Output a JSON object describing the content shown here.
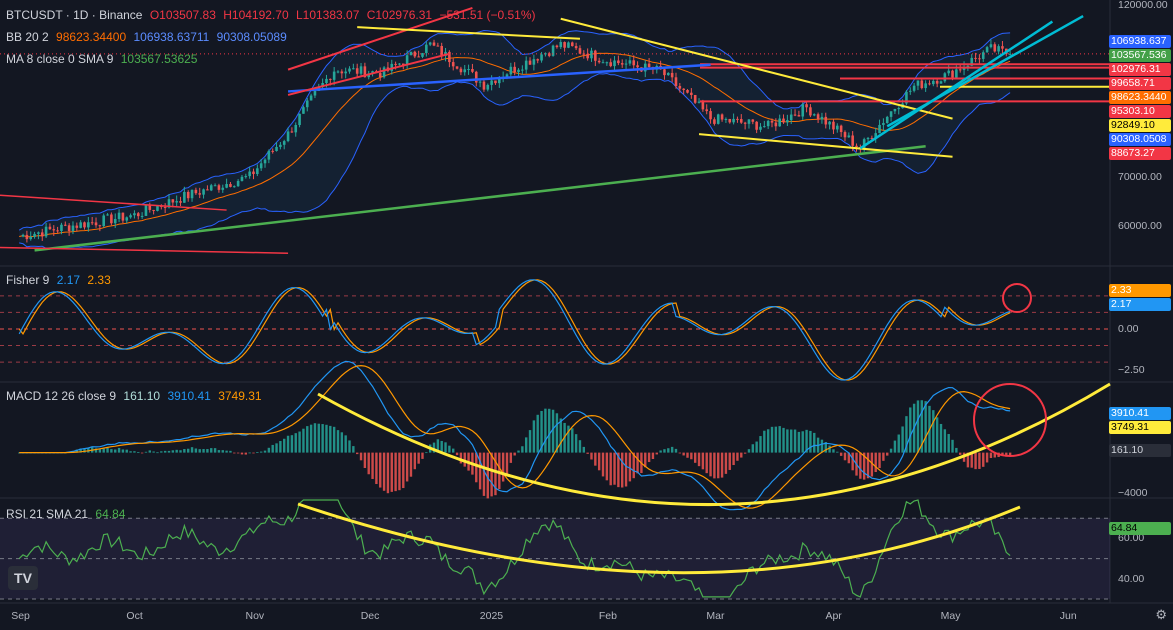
{
  "header": {
    "symbol": "BTCUSDT · 1D · Binance",
    "open": "O103507.83",
    "high": "H104192.70",
    "low": "L101383.07",
    "close": "C102976.31",
    "change": "−531.51 (−0.51%)"
  },
  "indicators": {
    "bb": {
      "name": "BB 20 2",
      "basis": "98623.34400",
      "upper": "106938.63711",
      "lower": "90308.05089",
      "basis_color": "#ff6d00",
      "upper_color": "#2962ff",
      "lower_color": "#2962ff"
    },
    "ma": {
      "name": "MA 8 close 0 SMA 9",
      "value": "103567.53625",
      "color": "#4caf50"
    },
    "fisher": {
      "name": "Fisher 9",
      "v1": "2.17",
      "v2": "2.33",
      "c1": "#2196f3",
      "c2": "#ff9800"
    },
    "macd": {
      "name": "MACD 12 26 close 9",
      "hist": "161.10",
      "macd": "3910.41",
      "signal": "3749.31",
      "c_hist": "#b2dfdb",
      "c_macd": "#2196f3",
      "c_signal": "#ff9800"
    },
    "rsi": {
      "name": "RSI 21 SMA 21",
      "value": "64.84",
      "color": "#4caf50"
    }
  },
  "price_axis": {
    "ticks": [
      {
        "value": 120000,
        "label": "120000.00"
      },
      {
        "value": 70000,
        "label": "70000.00"
      },
      {
        "value": 60000,
        "label": "60000.00"
      }
    ],
    "tags": [
      {
        "value": 106938.637,
        "label": "106938.637",
        "bg": "#2962ff",
        "fg": "#ffffff"
      },
      {
        "value": 103567.536,
        "label": "103567.536",
        "bg": "#43a047",
        "fg": "#ffffff"
      },
      {
        "value": 102976.31,
        "label": "102976.31",
        "bg": "#f23645",
        "fg": "#ffffff"
      },
      {
        "value": 99658.71,
        "label": "99658.71",
        "bg": "#f23645",
        "fg": "#ffffff"
      },
      {
        "value": 98623.344,
        "label": "98623.3440",
        "bg": "#ff6d00",
        "fg": "#ffffff"
      },
      {
        "value": 95303.1,
        "label": "95303.10",
        "bg": "#f23645",
        "fg": "#ffffff"
      },
      {
        "value": 92849.1,
        "label": "92849.10",
        "bg": "#ffeb3b",
        "fg": "#000000"
      },
      {
        "value": 90308.0508,
        "label": "90308.0508",
        "bg": "#2962ff",
        "fg": "#ffffff"
      },
      {
        "value": 88673.27,
        "label": "88673.27",
        "bg": "#f23645",
        "fg": "#ffffff"
      }
    ]
  },
  "fisher_axis": {
    "ticks": [
      {
        "value": 0,
        "label": "0.00"
      },
      {
        "value": -2.5,
        "label": "−2.50"
      }
    ],
    "tags": [
      {
        "value": 2.33,
        "label": "2.33",
        "bg": "#ff9800",
        "fg": "#ffffff"
      },
      {
        "value": 2.17,
        "label": "2.17",
        "bg": "#2196f3",
        "fg": "#ffffff"
      }
    ]
  },
  "macd_axis": {
    "ticks": [
      {
        "value": -4000,
        "label": "−4000"
      }
    ],
    "tags": [
      {
        "value": 3910.41,
        "label": "3910.41",
        "bg": "#2196f3",
        "fg": "#ffffff"
      },
      {
        "value": 3749.31,
        "label": "3749.31",
        "bg": "#ffeb3b",
        "fg": "#000000"
      },
      {
        "value": 161.1,
        "label": "161.10",
        "bg": "#2a2e39",
        "fg": "#d1d4dc"
      }
    ]
  },
  "rsi_axis": {
    "ticks": [
      {
        "value": 60,
        "label": "60.00"
      },
      {
        "value": 40,
        "label": "40.00"
      }
    ],
    "tags": [
      {
        "value": 64.84,
        "label": "64.84",
        "bg": "#4caf50",
        "fg": "#000000"
      }
    ]
  },
  "time_axis": {
    "labels": [
      "Sep",
      "Oct",
      "Nov",
      "Dec",
      "2025",
      "Feb",
      "Mar",
      "Apr",
      "May",
      "Jun"
    ]
  },
  "logo_text": "TV",
  "chart_data": {
    "type": "candlestick",
    "symbol": "BTCUSDT",
    "interval": "1D",
    "exchange": "Binance",
    "x_range": [
      "2024-08-27",
      "2025-06-12"
    ],
    "ylim": [
      53000,
      122000
    ],
    "key_points": [
      {
        "date": "2024-09-01",
        "close": 58000
      },
      {
        "date": "2024-09-15",
        "close": 60000
      },
      {
        "date": "2024-10-01",
        "close": 62000
      },
      {
        "date": "2024-10-15",
        "close": 66000
      },
      {
        "date": "2024-10-31",
        "close": 70000
      },
      {
        "date": "2024-11-10",
        "close": 80000
      },
      {
        "date": "2024-11-22",
        "close": 98000
      },
      {
        "date": "2024-12-05",
        "close": 97000
      },
      {
        "date": "2024-12-17",
        "close": 106000
      },
      {
        "date": "2024-12-31",
        "close": 93500
      },
      {
        "date": "2025-01-20",
        "close": 106000
      },
      {
        "date": "2025-02-01",
        "close": 101000
      },
      {
        "date": "2025-02-15",
        "close": 97500
      },
      {
        "date": "2025-02-28",
        "close": 84000
      },
      {
        "date": "2025-03-15",
        "close": 82000
      },
      {
        "date": "2025-03-25",
        "close": 87000
      },
      {
        "date": "2025-04-08",
        "close": 76500
      },
      {
        "date": "2025-04-22",
        "close": 93000
      },
      {
        "date": "2025-05-01",
        "close": 96500
      },
      {
        "date": "2025-05-12",
        "close": 104500
      },
      {
        "date": "2025-05-17",
        "close": 102976.31
      }
    ],
    "horizontal_levels": [
      99658.71,
      98623.344,
      95303.1,
      92849.1,
      88673.27
    ],
    "panes": [
      "price",
      "fisher",
      "macd",
      "rsi"
    ],
    "grid": false
  }
}
